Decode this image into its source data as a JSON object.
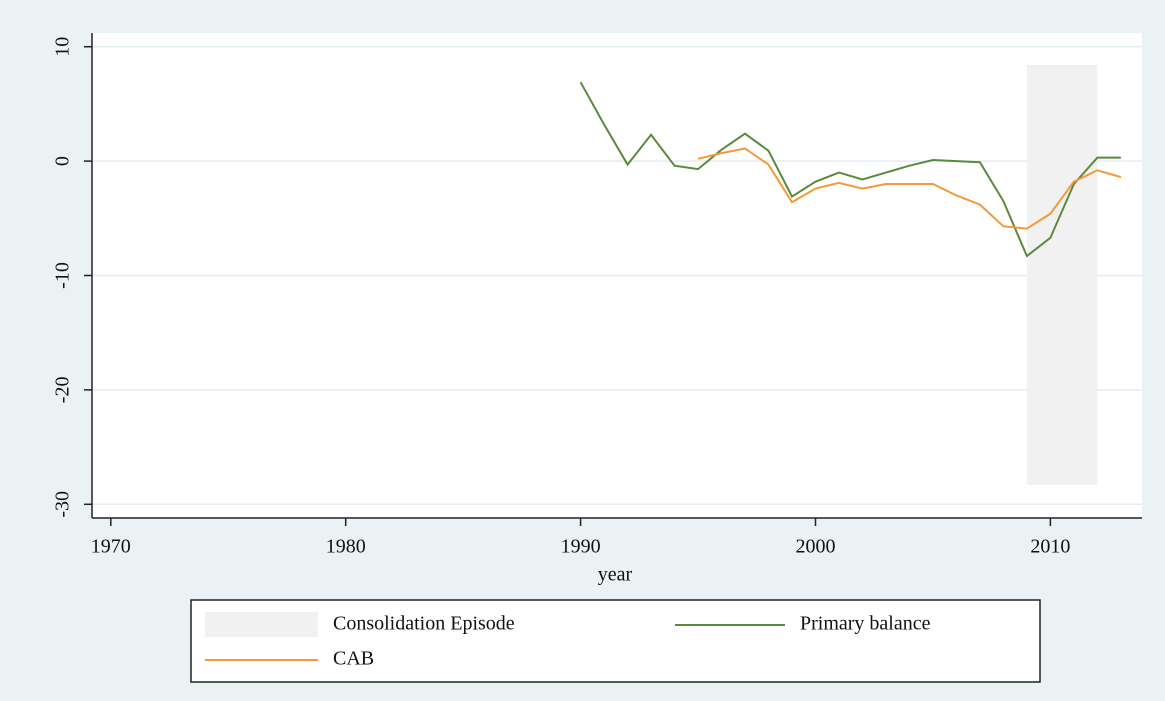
{
  "chart_data": {
    "type": "line",
    "x_label": "year",
    "x": [
      1990,
      1991,
      1992,
      1993,
      1994,
      1995,
      1996,
      1997,
      1998,
      1999,
      2000,
      2001,
      2002,
      2003,
      2004,
      2005,
      2006,
      2007,
      2008,
      2009,
      2010,
      2011,
      2012,
      2013
    ],
    "series": [
      {
        "name": "Primary balance",
        "color": "#5a8a3a",
        "values": [
          6.9,
          3.2,
          -0.3,
          2.3,
          -0.4,
          -0.7,
          1.0,
          2.4,
          0.9,
          -3.1,
          -1.8,
          -1.0,
          -1.6,
          -1.0,
          -0.4,
          0.1,
          0,
          -0.1,
          -3.5,
          -8.3,
          -6.7,
          -2.0,
          0.3,
          0.3
        ]
      },
      {
        "name": "CAB",
        "color": "#f39a3a",
        "values": [
          null,
          null,
          null,
          null,
          null,
          0.2,
          0.7,
          1.1,
          -0.3,
          -3.6,
          -2.4,
          -1.9,
          -2.4,
          -2.0,
          -2.0,
          -2.0,
          -3.0,
          -3.8,
          -5.7,
          -5.9,
          -4.6,
          -1.8,
          -0.8,
          -1.4
        ]
      }
    ],
    "shade": {
      "name": "Consolidation Episode",
      "color": "#f1f1f1",
      "x": [
        2009,
        2012
      ],
      "y": [
        -28.3,
        8.4
      ]
    },
    "xlim": [
      1969.2,
      2013.9
    ],
    "xticks": [
      1970,
      1980,
      1990,
      2000,
      2010
    ],
    "ylim": [
      -31.2,
      11.2
    ],
    "yticks": [
      10,
      0,
      -10,
      -20,
      -30
    ],
    "grid": true
  }
}
